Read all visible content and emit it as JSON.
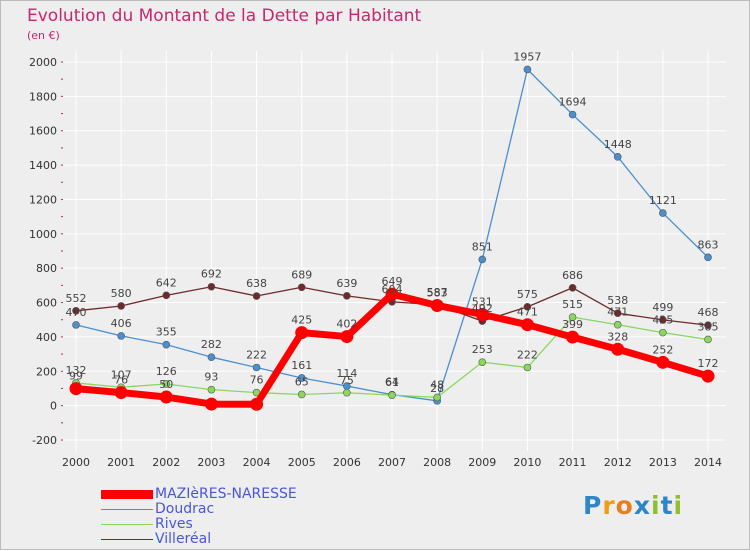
{
  "title": "Evolution du Montant de la Dette par Habitant",
  "subtitle": "(en €)",
  "colors": {
    "title": "#c8266d",
    "legend_text": "#4a56d8",
    "grid": "#ffffff",
    "axis_ticks": "#c0245b"
  },
  "brand": {
    "text": "Proxiti",
    "letter_colors": [
      "#2e86c8",
      "#f39c12",
      "#e67e22",
      "#2e86c8",
      "#8fbf2e",
      "#2e86c8",
      "#8fbf2e"
    ]
  },
  "chart_data": {
    "type": "line",
    "x": [
      "2000",
      "2001",
      "2002",
      "2003",
      "2004",
      "2005",
      "2006",
      "2007",
      "2008",
      "2009",
      "2010",
      "2011",
      "2012",
      "2013",
      "2014"
    ],
    "xlabel": "",
    "ylabel": "",
    "ylim": [
      -200,
      2000
    ],
    "yticks": [
      -200,
      0,
      200,
      400,
      600,
      800,
      1000,
      1200,
      1400,
      1600,
      1800,
      2000
    ],
    "grid": true,
    "legend_position": "bottom-left",
    "series": [
      {
        "name": "MAZIèRES-NARESSE",
        "color": "#ff0000",
        "values": [
          99,
          76,
          50,
          9,
          8,
          425,
          402,
          649,
          583,
          531,
          471,
          399,
          328,
          252,
          172
        ],
        "labels": [
          "99",
          "76",
          "50",
          "",
          "",
          "425",
          "402",
          "649",
          "583",
          "531",
          "471",
          "399",
          "328",
          "252",
          "172"
        ]
      },
      {
        "name": "Doudrac",
        "color": "#4a8fcf",
        "values": [
          470,
          406,
          355,
          282,
          222,
          161,
          114,
          64,
          28,
          851,
          1957,
          1694,
          1448,
          1121,
          863
        ],
        "labels": [
          "470",
          "406",
          "355",
          "282",
          "222",
          "161",
          "114",
          "64",
          "28",
          "851",
          "1957",
          "1694",
          "1448",
          "1121",
          "863"
        ]
      },
      {
        "name": "Rives",
        "color": "#88d860",
        "values": [
          132,
          107,
          126,
          93,
          76,
          65,
          75,
          61,
          48,
          253,
          222,
          515,
          471,
          425,
          385
        ],
        "labels": [
          "132",
          "107",
          "126",
          "93",
          "76",
          "65",
          "75",
          "61",
          "48",
          "253",
          "222",
          "515",
          "471",
          "425",
          "385"
        ]
      },
      {
        "name": "Villeréal",
        "color": "#6e2a2a",
        "values": [
          552,
          580,
          642,
          692,
          638,
          689,
          639,
          604,
          587,
          492,
          575,
          686,
          538,
          499,
          468
        ],
        "labels": [
          "552",
          "580",
          "642",
          "692",
          "638",
          "689",
          "639",
          "604",
          "587",
          "492",
          "575",
          "686",
          "538",
          "499",
          "468"
        ]
      }
    ]
  }
}
